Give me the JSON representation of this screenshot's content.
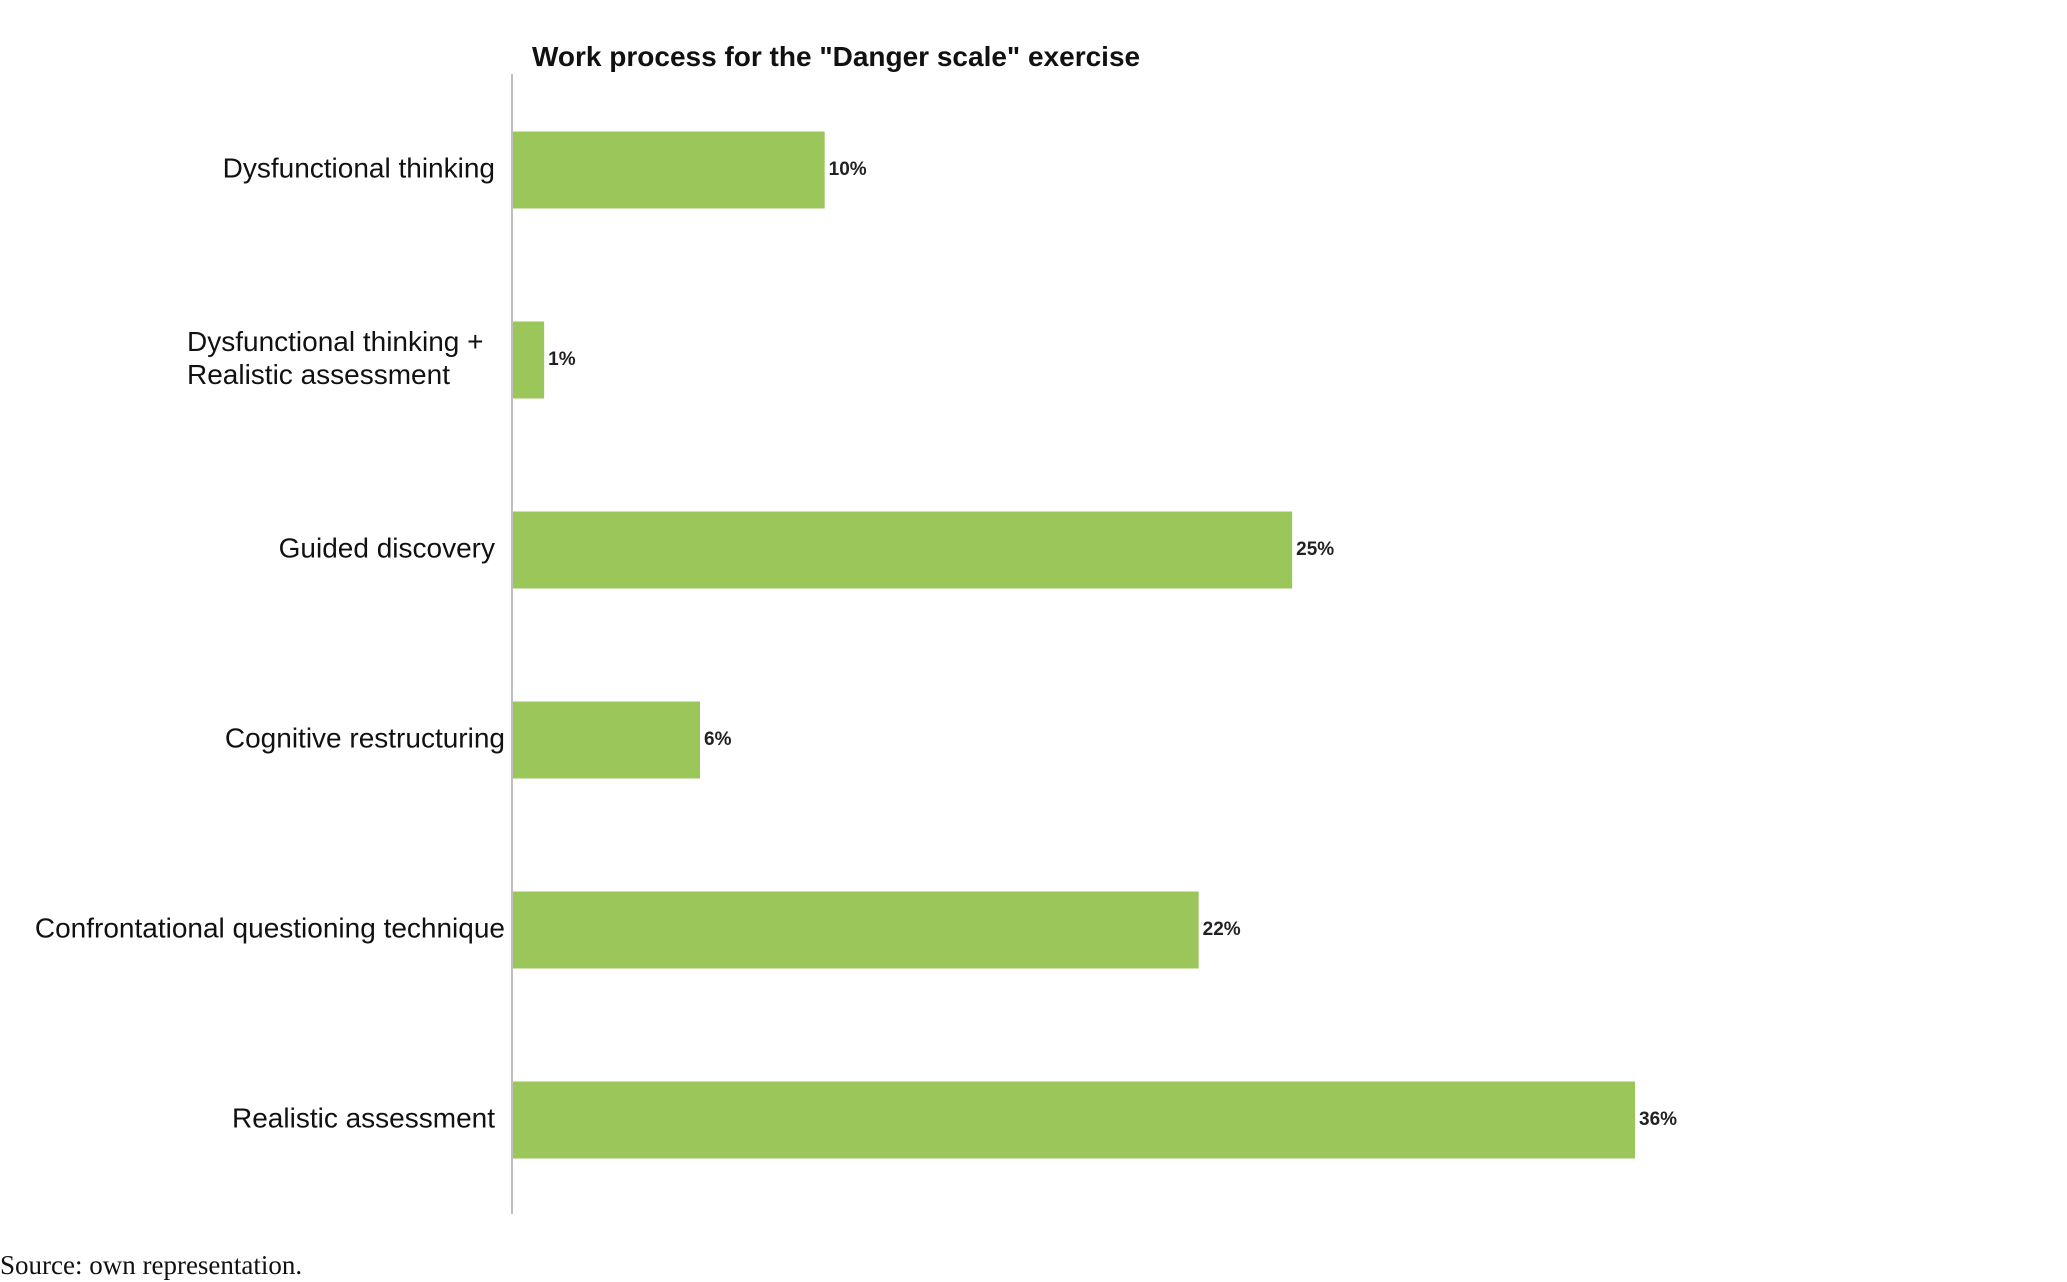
{
  "chart_data": {
    "type": "bar",
    "orientation": "horizontal",
    "title": "Work process for the \"Danger scale\" exercise",
    "categories": [
      [
        "Dysfunctional thinking"
      ],
      [
        "Dysfunctional thinking +",
        "Realistic assessment"
      ],
      [
        "Guided discovery"
      ],
      [
        "Cognitive restructuring"
      ],
      [
        "Confrontational questioning technique"
      ],
      [
        "Realistic assessment"
      ]
    ],
    "values": [
      10,
      1,
      25,
      6,
      22,
      36
    ],
    "data_labels": [
      "10%",
      "1%",
      "25%",
      "6%",
      "22%",
      "36%"
    ],
    "unit": "%",
    "xlim": [
      0,
      36
    ],
    "grid": false,
    "legend": "none",
    "bar_color": "#9bc65a",
    "axis_color": "#bfbfbf"
  },
  "source_note": "Source: own representation."
}
